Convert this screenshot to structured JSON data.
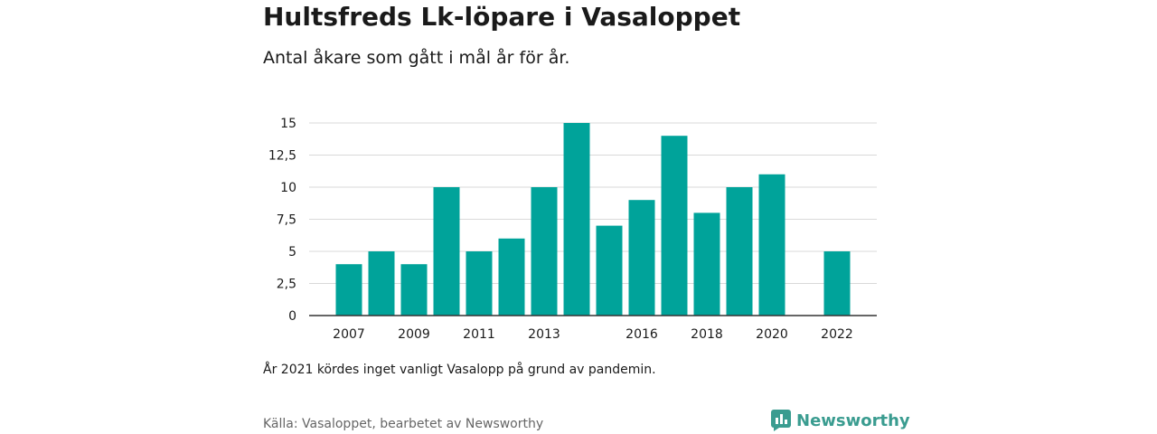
{
  "header": {
    "title": "Hultsfreds Lk-löpare i Vasaloppet",
    "subtitle": "Antal åkare som gått i mål år för år."
  },
  "footer": {
    "note": "År 2021 kördes inget vanligt Vasalopp på grund av pandemin.",
    "source": "Källa: Vasaloppet, bearbetet av Newsworthy",
    "logo_text": "Newsworthy"
  },
  "colors": {
    "bar": "#00a39a",
    "grid": "#d9d9d9",
    "axis": "#333333",
    "logo": "#3a9c90"
  },
  "chart_data": {
    "type": "bar",
    "title": "Hultsfreds Lk-löpare i Vasaloppet",
    "subtitle": "Antal åkare som gått i mål år för år.",
    "categories": [
      "2007",
      "2008",
      "2009",
      "2010",
      "2011",
      "2012",
      "2013",
      "2014",
      "2015",
      "2016",
      "2017",
      "2018",
      "2019",
      "2020",
      "2021",
      "2022"
    ],
    "values": [
      4,
      5,
      4,
      10,
      5,
      6,
      10,
      15,
      7,
      9,
      14,
      8,
      10,
      11,
      null,
      5
    ],
    "x_tick_labels": [
      "2007",
      "2009",
      "2011",
      "2013",
      "2016",
      "2018",
      "2020",
      "2022"
    ],
    "y_ticks": [
      0,
      2.5,
      5,
      7.5,
      10,
      12.5,
      15
    ],
    "y_tick_labels": [
      "0",
      "2,5",
      "5",
      "7,5",
      "10",
      "12,5",
      "15"
    ],
    "ylim": [
      0,
      15
    ],
    "grid": true,
    "legend": "none",
    "xlabel": "",
    "ylabel": ""
  }
}
